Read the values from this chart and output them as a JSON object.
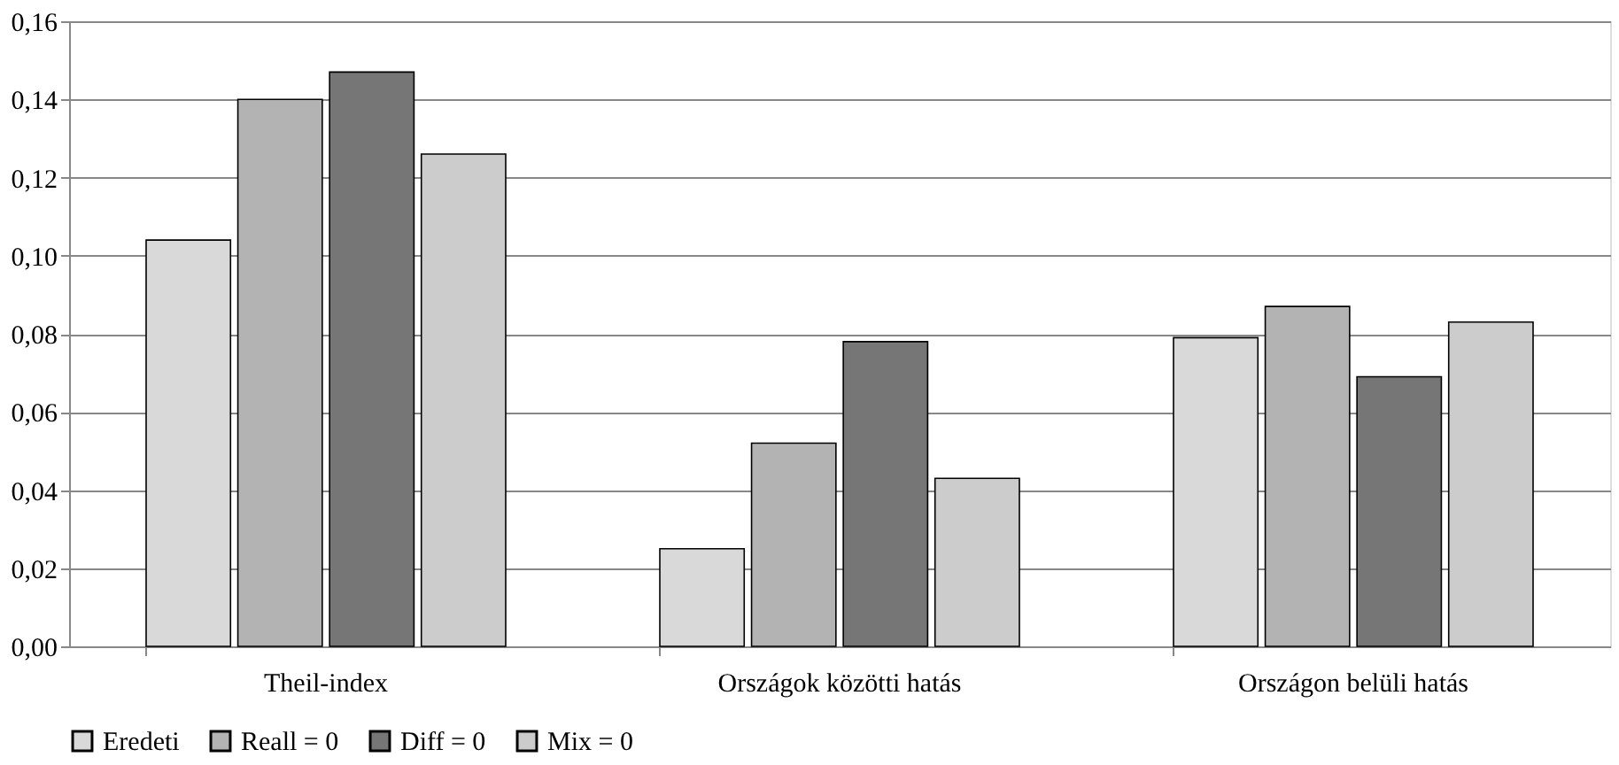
{
  "chart_data": {
    "type": "bar",
    "categories": [
      "Theil-index",
      "Országok közötti hatás",
      "Országon belüli hatás"
    ],
    "series": [
      {
        "name": "Eredeti",
        "color": "#d9d9d9",
        "values": [
          0.104,
          0.025,
          0.079
        ]
      },
      {
        "name": "Reall = 0",
        "color": "#b3b3b3",
        "values": [
          0.14,
          0.052,
          0.087
        ]
      },
      {
        "name": "Diff = 0",
        "color": "#767676",
        "values": [
          0.147,
          0.078,
          0.069
        ]
      },
      {
        "name": "Mix = 0",
        "color": "#cccccc",
        "values": [
          0.126,
          0.043,
          0.083
        ]
      }
    ],
    "ylim": [
      0,
      0.16
    ],
    "yticks": [
      {
        "value": 0,
        "label": "0,00"
      },
      {
        "value": 0.02,
        "label": "0,02"
      },
      {
        "value": 0.04,
        "label": "0,04"
      },
      {
        "value": 0.06,
        "label": "0,06"
      },
      {
        "value": 0.08,
        "label": "0,08"
      },
      {
        "value": 0.1,
        "label": "0,10"
      },
      {
        "value": 0.12,
        "label": "0,12"
      },
      {
        "value": 0.14,
        "label": "0,14"
      },
      {
        "value": 0.16,
        "label": "0,16"
      }
    ],
    "grid": "y",
    "legend": "bottom"
  }
}
